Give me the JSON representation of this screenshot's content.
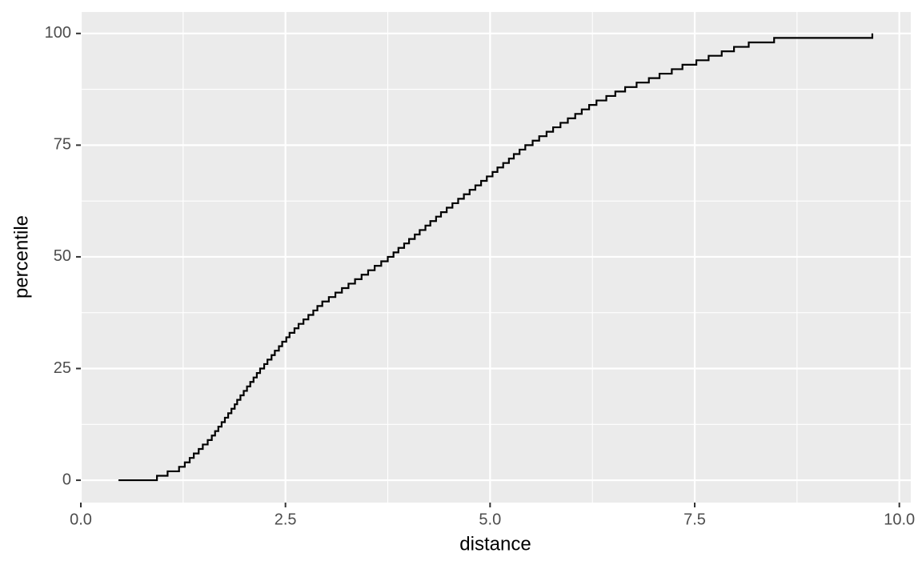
{
  "chart_data": {
    "type": "step",
    "xlabel": "distance",
    "ylabel": "percentile",
    "x": [
      0.46,
      0.93,
      1.06,
      1.2,
      1.27,
      1.33,
      1.38,
      1.44,
      1.49,
      1.55,
      1.6,
      1.64,
      1.68,
      1.72,
      1.76,
      1.8,
      1.84,
      1.88,
      1.91,
      1.95,
      1.99,
      2.03,
      2.07,
      2.11,
      2.15,
      2.19,
      2.24,
      2.28,
      2.33,
      2.37,
      2.42,
      2.46,
      2.51,
      2.55,
      2.61,
      2.66,
      2.72,
      2.78,
      2.84,
      2.89,
      2.95,
      3.03,
      3.11,
      3.19,
      3.27,
      3.35,
      3.43,
      3.51,
      3.59,
      3.67,
      3.75,
      3.82,
      3.88,
      3.95,
      4.01,
      4.08,
      4.14,
      4.21,
      4.27,
      4.34,
      4.4,
      4.47,
      4.54,
      4.61,
      4.68,
      4.75,
      4.82,
      4.89,
      4.96,
      5.03,
      5.09,
      5.16,
      5.23,
      5.29,
      5.36,
      5.43,
      5.52,
      5.6,
      5.69,
      5.77,
      5.86,
      5.95,
      6.04,
      6.12,
      6.21,
      6.3,
      6.42,
      6.53,
      6.65,
      6.79,
      6.94,
      7.07,
      7.22,
      7.35,
      7.52,
      7.67,
      7.83,
      7.98,
      8.16,
      8.47,
      9.67
    ],
    "values": [
      0,
      1,
      2,
      3,
      4,
      5,
      6,
      7,
      8,
      9,
      10,
      11,
      12,
      13,
      14,
      15,
      16,
      17,
      18,
      19,
      20,
      21,
      22,
      23,
      24,
      25,
      26,
      27,
      28,
      29,
      30,
      31,
      32,
      33,
      34,
      35,
      36,
      37,
      38,
      39,
      40,
      41,
      42,
      43,
      44,
      45,
      46,
      47,
      48,
      49,
      50,
      51,
      52,
      53,
      54,
      55,
      56,
      57,
      58,
      59,
      60,
      61,
      62,
      63,
      64,
      65,
      66,
      67,
      68,
      69,
      70,
      71,
      72,
      73,
      74,
      75,
      76,
      77,
      78,
      79,
      80,
      81,
      82,
      83,
      84,
      85,
      86,
      87,
      88,
      89,
      90,
      91,
      92,
      93,
      94,
      95,
      96,
      97,
      98,
      99,
      100
    ],
    "color": "#000000",
    "xlim": [
      0,
      10.14
    ],
    "ylim": [
      -5,
      104.8
    ],
    "xticks": [
      {
        "value": 0,
        "label": "0.0"
      },
      2.5,
      {
        "value": 5,
        "label": "5.0"
      },
      7.5,
      {
        "value": 10,
        "label": "10.0"
      }
    ],
    "yticks": [
      0,
      25,
      50,
      75,
      100
    ],
    "x_minor_grid": [
      1.25,
      3.75,
      6.25,
      8.75
    ],
    "y_minor_grid": [
      12.5,
      37.5,
      62.5,
      87.5
    ],
    "grid": true
  }
}
